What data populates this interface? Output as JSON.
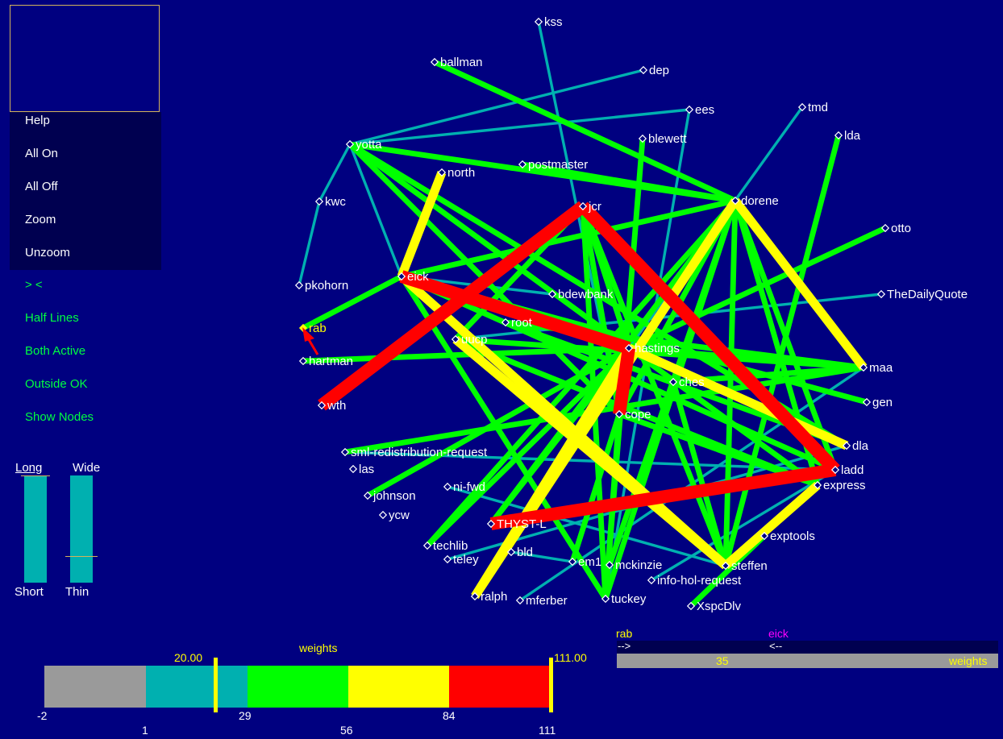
{
  "menu": {
    "help": "Help",
    "all_on": "All On",
    "all_off": "All Off",
    "zoom": "Zoom",
    "unzoom": "Unzoom"
  },
  "toggles": {
    "direction": "> <",
    "half_lines": "Half Lines",
    "both_active": "Both Active",
    "outside_ok": "Outside OK",
    "show_nodes": "Show Nodes"
  },
  "sliders": {
    "length": {
      "top": "Long",
      "bottom": "Short",
      "level": 1.0
    },
    "width": {
      "top": "Wide",
      "bottom": "Thin",
      "level": 0.25
    }
  },
  "legend": {
    "title": "weights",
    "min_threshold": "20.00",
    "max_threshold": "111.00",
    "ticks_top": [
      "-2",
      "29",
      "84"
    ],
    "ticks_bottom": [
      "1",
      "56",
      "111"
    ],
    "colors": [
      "#9a9a9a",
      "#00b0b0",
      "#00ff00",
      "#ffff00",
      "#ff0000"
    ]
  },
  "selection": {
    "source": "rab",
    "target": "eick",
    "forward": "-->",
    "backward": "<--",
    "value": "35",
    "metric": "weights",
    "source_color": "#ffff00",
    "target_color": "#ff00ff"
  },
  "graph": {
    "nodes": [
      {
        "id": "kss",
        "label": "kss"
      },
      {
        "id": "ballman",
        "label": "ballman"
      },
      {
        "id": "dep",
        "label": "dep"
      },
      {
        "id": "ees",
        "label": "ees"
      },
      {
        "id": "tmd",
        "label": "tmd"
      },
      {
        "id": "lda",
        "label": "lda"
      },
      {
        "id": "blewett",
        "label": "blewett"
      },
      {
        "id": "yotta",
        "label": "yotta"
      },
      {
        "id": "postmaster",
        "label": "postmaster"
      },
      {
        "id": "north",
        "label": "north"
      },
      {
        "id": "dorene",
        "label": "dorene"
      },
      {
        "id": "kwc",
        "label": "kwc"
      },
      {
        "id": "jcr",
        "label": "jcr"
      },
      {
        "id": "otto",
        "label": "otto"
      },
      {
        "id": "eick",
        "label": "eick"
      },
      {
        "id": "pkohorn",
        "label": "pkohorn"
      },
      {
        "id": "bdewbank",
        "label": "bdewbank"
      },
      {
        "id": "TheDailyQuote",
        "label": "TheDailyQuote"
      },
      {
        "id": "rab",
        "label": "rab"
      },
      {
        "id": "root",
        "label": "root"
      },
      {
        "id": "uucp",
        "label": "uucp"
      },
      {
        "id": "hastings",
        "label": "hastings"
      },
      {
        "id": "hartman",
        "label": "hartman"
      },
      {
        "id": "maa",
        "label": "maa"
      },
      {
        "id": "ches",
        "label": "ches"
      },
      {
        "id": "wth",
        "label": "wth"
      },
      {
        "id": "gen",
        "label": "gen"
      },
      {
        "id": "cope",
        "label": "cope"
      },
      {
        "id": "dla",
        "label": "dla"
      },
      {
        "id": "sml",
        "label": "sml-redistribution-request"
      },
      {
        "id": "ladd",
        "label": "ladd"
      },
      {
        "id": "las",
        "label": "las"
      },
      {
        "id": "express",
        "label": "express"
      },
      {
        "id": "nifwd",
        "label": "ni-fwd"
      },
      {
        "id": "johnson",
        "label": "johnson"
      },
      {
        "id": "ycw",
        "label": "ycw"
      },
      {
        "id": "THYST-L",
        "label": "THYST-L"
      },
      {
        "id": "exptools",
        "label": "exptools"
      },
      {
        "id": "techlib",
        "label": "techlib"
      },
      {
        "id": "bld",
        "label": "bld"
      },
      {
        "id": "teley",
        "label": "teley"
      },
      {
        "id": "em1",
        "label": "em1"
      },
      {
        "id": "mckinzie",
        "label": "mckinzie"
      },
      {
        "id": "steffen",
        "label": "steffen"
      },
      {
        "id": "ralph",
        "label": "ralph"
      },
      {
        "id": "infohol",
        "label": "info-hol-request"
      },
      {
        "id": "mferber",
        "label": "mferber"
      },
      {
        "id": "tuckey",
        "label": "tuckey"
      },
      {
        "id": "XspcDlv",
        "label": "XspcDlv"
      }
    ],
    "edges": [
      {
        "from": "kss",
        "to": "cope",
        "weight": 10
      },
      {
        "from": "ballman",
        "to": "dorene",
        "weight": 35
      },
      {
        "from": "dep",
        "to": "yotta",
        "weight": 10
      },
      {
        "from": "ees",
        "to": "yotta",
        "weight": 10
      },
      {
        "from": "ees",
        "to": "tuckey",
        "weight": 10
      },
      {
        "from": "tmd",
        "to": "hastings",
        "weight": 10
      },
      {
        "from": "lda",
        "to": "steffen",
        "weight": 35
      },
      {
        "from": "blewett",
        "to": "tuckey",
        "weight": 35
      },
      {
        "from": "yotta",
        "to": "dorene",
        "weight": 35
      },
      {
        "from": "yotta",
        "to": "kwc",
        "weight": 10
      },
      {
        "from": "yotta",
        "to": "eick",
        "weight": 10
      },
      {
        "from": "yotta",
        "to": "hastings",
        "weight": 35
      },
      {
        "from": "yotta",
        "to": "cope",
        "weight": 35
      },
      {
        "from": "yotta",
        "to": "dla",
        "weight": 35
      },
      {
        "from": "postmaster",
        "to": "dorene",
        "weight": 35
      },
      {
        "from": "north",
        "to": "eick",
        "weight": 65
      },
      {
        "from": "dorene",
        "to": "eick",
        "weight": 35
      },
      {
        "from": "dorene",
        "to": "steffen",
        "weight": 35
      },
      {
        "from": "dorene",
        "to": "maa",
        "weight": 65
      },
      {
        "from": "dorene",
        "to": "ralph",
        "weight": 65
      },
      {
        "from": "dorene",
        "to": "THYST-L",
        "weight": 35
      },
      {
        "from": "dorene",
        "to": "express",
        "weight": 35
      },
      {
        "from": "dorene",
        "to": "tuckey",
        "weight": 35
      },
      {
        "from": "dorene",
        "to": "techlib",
        "weight": 35
      },
      {
        "from": "dorene",
        "to": "ladd",
        "weight": 35
      },
      {
        "from": "dorene",
        "to": "cope",
        "weight": 35
      },
      {
        "from": "dorene",
        "to": "mckinzie",
        "weight": 35
      },
      {
        "from": "kwc",
        "to": "pkohorn",
        "weight": 10
      },
      {
        "from": "jcr",
        "to": "wth",
        "weight": 100
      },
      {
        "from": "jcr",
        "to": "ladd",
        "weight": 100
      },
      {
        "from": "jcr",
        "to": "cope",
        "weight": 35
      },
      {
        "from": "jcr",
        "to": "tuckey",
        "weight": 35
      },
      {
        "from": "jcr",
        "to": "uucp",
        "weight": 35
      },
      {
        "from": "jcr",
        "to": "hastings",
        "weight": 35
      },
      {
        "from": "jcr",
        "to": "steffen",
        "weight": 35
      },
      {
        "from": "otto",
        "to": "hastings",
        "weight": 35
      },
      {
        "from": "eick",
        "to": "hastings",
        "weight": 100
      },
      {
        "from": "eick",
        "to": "rab",
        "weight": 35
      },
      {
        "from": "eick",
        "to": "steffen",
        "weight": 65
      },
      {
        "from": "eick",
        "to": "ladd",
        "weight": 35
      },
      {
        "from": "eick",
        "to": "gen",
        "weight": 35
      },
      {
        "from": "eick",
        "to": "tuckey",
        "weight": 35
      },
      {
        "from": "eick",
        "to": "bdewbank",
        "weight": 10
      },
      {
        "from": "TheDailyQuote",
        "to": "uucp",
        "weight": 10
      },
      {
        "from": "root",
        "to": "maa",
        "weight": 35
      },
      {
        "from": "root",
        "to": "dla",
        "weight": 35
      },
      {
        "from": "uucp",
        "to": "maa",
        "weight": 35
      },
      {
        "from": "uucp",
        "to": "steffen",
        "weight": 65
      },
      {
        "from": "uucp",
        "to": "express",
        "weight": 35
      },
      {
        "from": "hastings",
        "to": "cope",
        "weight": 100
      },
      {
        "from": "hastings",
        "to": "ralph",
        "weight": 65
      },
      {
        "from": "hastings",
        "to": "dla",
        "weight": 65
      },
      {
        "from": "hastings",
        "to": "hartman",
        "weight": 35
      },
      {
        "from": "hastings",
        "to": "THYST-L",
        "weight": 35
      },
      {
        "from": "hastings",
        "to": "maa",
        "weight": 35
      },
      {
        "from": "hastings",
        "to": "express",
        "weight": 35
      },
      {
        "from": "hastings",
        "to": "johnson",
        "weight": 35
      },
      {
        "from": "hastings",
        "to": "techlib",
        "weight": 35
      },
      {
        "from": "maa",
        "to": "sml",
        "weight": 35
      },
      {
        "from": "maa",
        "to": "mferber",
        "weight": 10
      },
      {
        "from": "maa",
        "to": "ches",
        "weight": 35
      },
      {
        "from": "cope",
        "to": "tuckey",
        "weight": 35
      },
      {
        "from": "cope",
        "to": "express",
        "weight": 35
      },
      {
        "from": "cope",
        "to": "em1",
        "weight": 35
      },
      {
        "from": "ches",
        "to": "steffen",
        "weight": 35
      },
      {
        "from": "ladd",
        "to": "THYST-L",
        "weight": 100
      },
      {
        "from": "ladd",
        "to": "infohol",
        "weight": 10
      },
      {
        "from": "express",
        "to": "steffen",
        "weight": 65
      },
      {
        "from": "nifwd",
        "to": "steffen",
        "weight": 10
      },
      {
        "from": "ladd",
        "to": "sml",
        "weight": 10
      },
      {
        "from": "dla",
        "to": "teley",
        "weight": 10
      },
      {
        "from": "exptools",
        "to": "XspcDlv",
        "weight": 35
      },
      {
        "from": "bld",
        "to": "em1",
        "weight": 10
      }
    ]
  }
}
